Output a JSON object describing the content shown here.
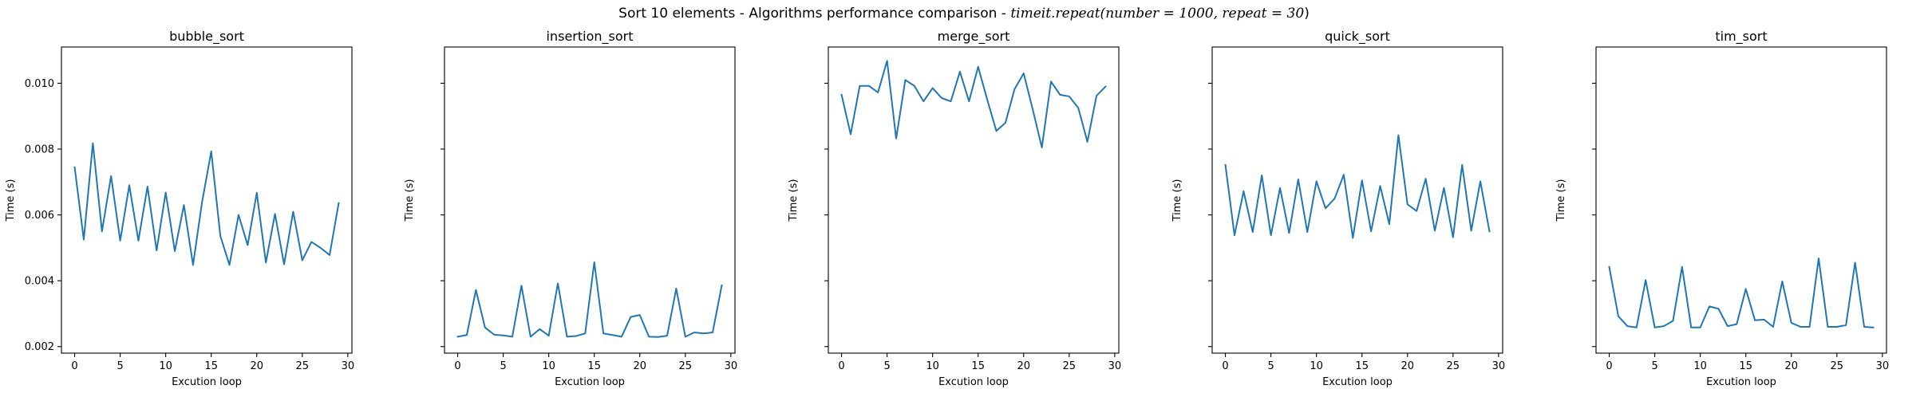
{
  "figure": {
    "title_prefix": "Sort 10 elements - Algorithms performance comparison - ",
    "title_math": "timeit.repeat(number = 1000, repeat = 30)",
    "title_suffix": ")",
    "title_math_open": "timeit.repeat(number = 1000, repeat = 30"
  },
  "style": {
    "line_color": "#1f77b4",
    "axis_color": "#000000"
  },
  "chart_data": [
    {
      "type": "line",
      "title": "bubble_sort",
      "xlabel": "Excution loop",
      "ylabel": "Time (s)",
      "xlim": [
        -1.45,
        30.45
      ],
      "ylim": [
        0.0018,
        0.0111
      ],
      "xticks": [
        0,
        5,
        10,
        15,
        20,
        25,
        30
      ],
      "yticks": [
        0.002,
        0.004,
        0.006,
        0.008,
        0.01
      ],
      "ytick_labels": [
        "0.002",
        "0.004",
        "0.006",
        "0.008",
        "0.010"
      ],
      "show_ytick_labels": true,
      "x": [
        0,
        1,
        2,
        3,
        4,
        5,
        6,
        7,
        8,
        9,
        10,
        11,
        12,
        13,
        14,
        15,
        16,
        17,
        18,
        19,
        20,
        21,
        22,
        23,
        24,
        25,
        26,
        27,
        28,
        29
      ],
      "values": [
        0.00745,
        0.00525,
        0.00818,
        0.0055,
        0.00718,
        0.00522,
        0.0069,
        0.00522,
        0.00686,
        0.00492,
        0.00668,
        0.0049,
        0.0063,
        0.00448,
        0.0064,
        0.00793,
        0.00536,
        0.00448,
        0.006,
        0.00508,
        0.00667,
        0.00455,
        0.00603,
        0.0045,
        0.0061,
        0.00462,
        0.00518,
        0.005,
        0.00478,
        0.00636
      ]
    },
    {
      "type": "line",
      "title": "insertion_sort",
      "xlabel": "Excution loop",
      "ylabel": "Time (s)",
      "xlim": [
        -1.45,
        30.45
      ],
      "ylim": [
        0.0018,
        0.0111
      ],
      "xticks": [
        0,
        5,
        10,
        15,
        20,
        25,
        30
      ],
      "yticks": [
        0.002,
        0.004,
        0.006,
        0.008,
        0.01
      ],
      "ytick_labels": [],
      "show_ytick_labels": false,
      "x": [
        0,
        1,
        2,
        3,
        4,
        5,
        6,
        7,
        8,
        9,
        10,
        11,
        12,
        13,
        14,
        15,
        16,
        17,
        18,
        19,
        20,
        21,
        22,
        23,
        24,
        25,
        26,
        27,
        28,
        29
      ],
      "values": [
        0.0023,
        0.00235,
        0.00372,
        0.00258,
        0.00236,
        0.00234,
        0.0023,
        0.00385,
        0.0023,
        0.00253,
        0.00233,
        0.00392,
        0.0023,
        0.00232,
        0.0024,
        0.00456,
        0.0024,
        0.00235,
        0.0023,
        0.0029,
        0.00296,
        0.0023,
        0.00229,
        0.00233,
        0.00376,
        0.0023,
        0.00243,
        0.0024,
        0.00243,
        0.00386
      ]
    },
    {
      "type": "line",
      "title": "merge_sort",
      "xlabel": "Excution loop",
      "ylabel": "Time (s)",
      "xlim": [
        -1.45,
        30.45
      ],
      "ylim": [
        0.0018,
        0.0111
      ],
      "xticks": [
        0,
        5,
        10,
        15,
        20,
        25,
        30
      ],
      "yticks": [
        0.002,
        0.004,
        0.006,
        0.008,
        0.01
      ],
      "ytick_labels": [],
      "show_ytick_labels": false,
      "x": [
        0,
        1,
        2,
        3,
        4,
        5,
        6,
        7,
        8,
        9,
        10,
        11,
        12,
        13,
        14,
        15,
        16,
        17,
        18,
        19,
        20,
        21,
        22,
        23,
        24,
        25,
        26,
        27,
        28,
        29
      ],
      "values": [
        0.00965,
        0.00845,
        0.00992,
        0.00992,
        0.00972,
        0.01068,
        0.00832,
        0.0101,
        0.00992,
        0.00945,
        0.00985,
        0.00955,
        0.00945,
        0.01035,
        0.00945,
        0.0105,
        0.0095,
        0.00855,
        0.0088,
        0.00982,
        0.0103,
        0.0092,
        0.00805,
        0.01005,
        0.00965,
        0.0096,
        0.00925,
        0.00822,
        0.00962,
        0.0099
      ]
    },
    {
      "type": "line",
      "title": "quick_sort",
      "xlabel": "Excution loop",
      "ylabel": "Time (s)",
      "xlim": [
        -1.45,
        30.45
      ],
      "ylim": [
        0.0018,
        0.0111
      ],
      "xticks": [
        0,
        5,
        10,
        15,
        20,
        25,
        30
      ],
      "yticks": [
        0.002,
        0.004,
        0.006,
        0.008,
        0.01
      ],
      "ytick_labels": [],
      "show_ytick_labels": false,
      "x": [
        0,
        1,
        2,
        3,
        4,
        5,
        6,
        7,
        8,
        9,
        10,
        11,
        12,
        13,
        14,
        15,
        16,
        17,
        18,
        19,
        20,
        21,
        22,
        23,
        24,
        25,
        26,
        27,
        28,
        29
      ],
      "values": [
        0.00752,
        0.00538,
        0.00672,
        0.00548,
        0.0072,
        0.00538,
        0.00682,
        0.00545,
        0.00708,
        0.00548,
        0.00702,
        0.0062,
        0.0065,
        0.00722,
        0.0053,
        0.00705,
        0.0055,
        0.00688,
        0.00572,
        0.00842,
        0.00632,
        0.00612,
        0.0071,
        0.00552,
        0.00682,
        0.00532,
        0.00752,
        0.00552,
        0.00702,
        0.0055
      ]
    },
    {
      "type": "line",
      "title": "tim_sort",
      "xlabel": "Excution loop",
      "ylabel": "Time (s)",
      "xlim": [
        -1.45,
        30.45
      ],
      "ylim": [
        0.0018,
        0.0111
      ],
      "xticks": [
        0,
        5,
        10,
        15,
        20,
        25,
        30
      ],
      "yticks": [
        0.002,
        0.004,
        0.006,
        0.008,
        0.01
      ],
      "ytick_labels": [],
      "show_ytick_labels": false,
      "x": [
        0,
        1,
        2,
        3,
        4,
        5,
        6,
        7,
        8,
        9,
        10,
        11,
        12,
        13,
        14,
        15,
        16,
        17,
        18,
        19,
        20,
        21,
        22,
        23,
        24,
        25,
        26,
        27,
        28,
        29
      ],
      "values": [
        0.00442,
        0.00292,
        0.00262,
        0.00258,
        0.00402,
        0.00258,
        0.00262,
        0.00278,
        0.00442,
        0.00258,
        0.00258,
        0.00322,
        0.00315,
        0.00262,
        0.00268,
        0.00375,
        0.0028,
        0.00282,
        0.0026,
        0.00398,
        0.00272,
        0.0026,
        0.0026,
        0.00468,
        0.0026,
        0.0026,
        0.00265,
        0.00455,
        0.0026,
        0.00258
      ]
    }
  ]
}
